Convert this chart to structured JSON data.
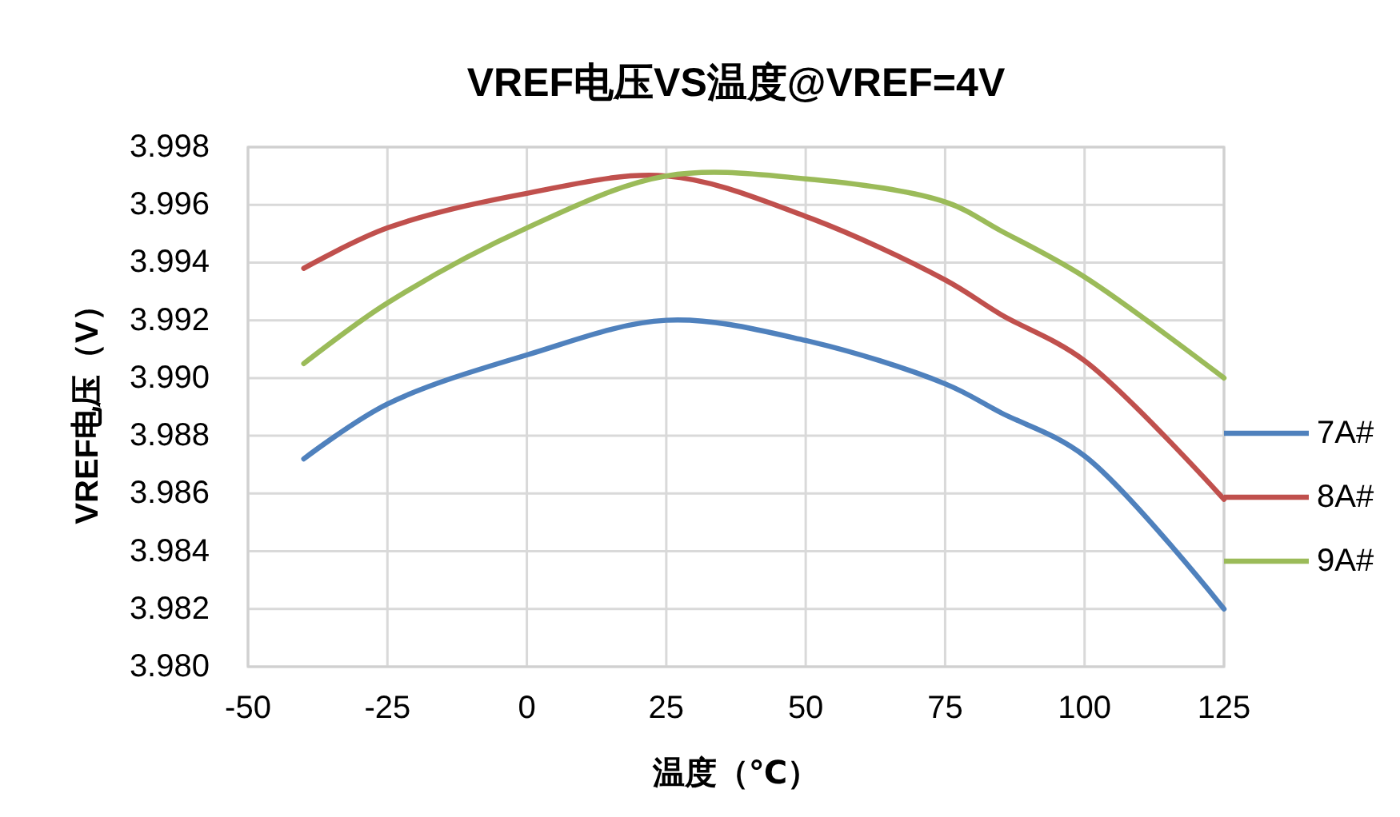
{
  "chart_data": {
    "type": "line",
    "title": "VREF电压VS温度@VREF=4V",
    "xlabel": "温度（℃）",
    "ylabel": "VREF电压（V）",
    "x": [
      -40,
      -25,
      0,
      25,
      50,
      75,
      85,
      100,
      125
    ],
    "series": [
      {
        "name": "7A#",
        "color": "#4f81bd",
        "values": [
          3.9872,
          3.9891,
          3.9908,
          3.992,
          3.9913,
          3.9898,
          3.9888,
          3.9873,
          3.982
        ]
      },
      {
        "name": "8A#",
        "color": "#c0504d",
        "values": [
          3.9938,
          3.9952,
          3.9964,
          3.997,
          3.9956,
          3.9934,
          3.9922,
          3.9906,
          3.9858
        ]
      },
      {
        "name": "9A#",
        "color": "#9bbb59",
        "values": [
          3.9905,
          3.9926,
          3.9952,
          3.997,
          3.9969,
          3.9961,
          3.9951,
          3.9935,
          3.99
        ]
      }
    ],
    "xlim": [
      -50,
      125
    ],
    "xticks": [
      -50,
      -25,
      0,
      25,
      50,
      75,
      100,
      125
    ],
    "ylim": [
      3.98,
      3.998
    ],
    "yticks": [
      {
        "value": 3.98,
        "label": "3.980"
      },
      3.982,
      3.984,
      3.986,
      3.988,
      {
        "value": 3.99,
        "label": "3.990"
      },
      3.992,
      3.994,
      3.996,
      3.998
    ],
    "grid": true,
    "legend": "right"
  }
}
